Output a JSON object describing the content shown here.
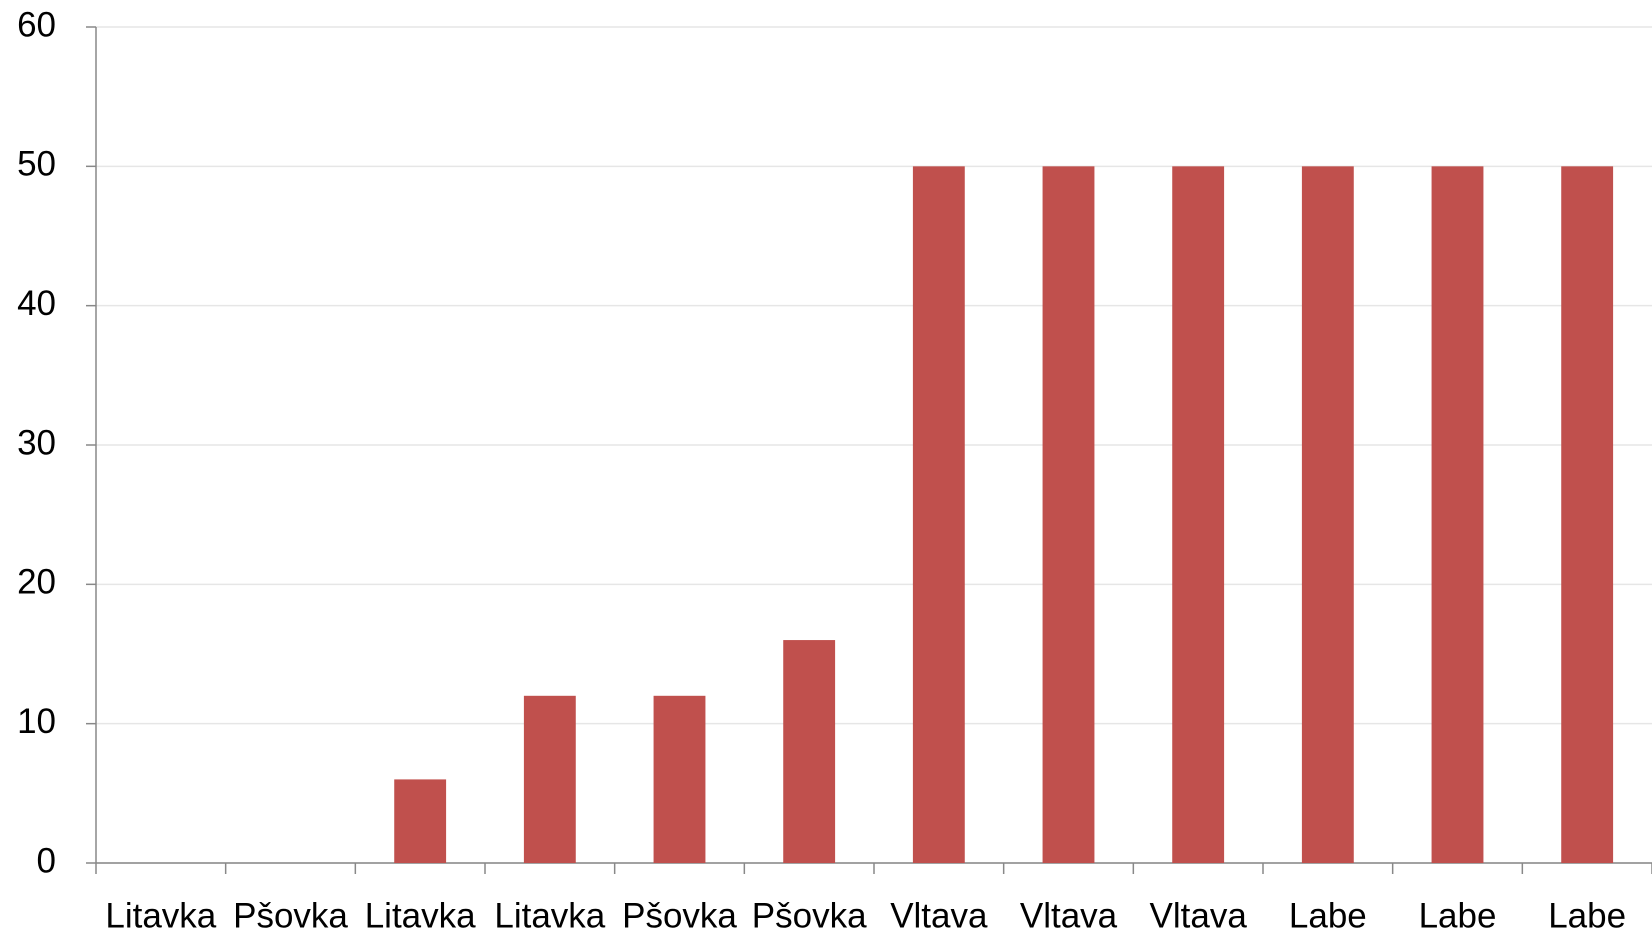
{
  "chart_data": {
    "type": "bar",
    "categories": [
      "Litavka",
      "Pšovka",
      "Litavka",
      "Litavka",
      "Pšovka",
      "Pšovka",
      "Vltava",
      "Vltava",
      "Vltava",
      "Labe",
      "Labe",
      "Labe"
    ],
    "values": [
      0,
      0,
      6,
      12,
      12,
      16,
      50,
      50,
      50,
      50,
      50,
      50
    ],
    "color": "#c0504d",
    "ylim": [
      0,
      60
    ],
    "yticks": [
      0,
      10,
      20,
      30,
      40,
      50,
      60
    ],
    "grid": true
  }
}
